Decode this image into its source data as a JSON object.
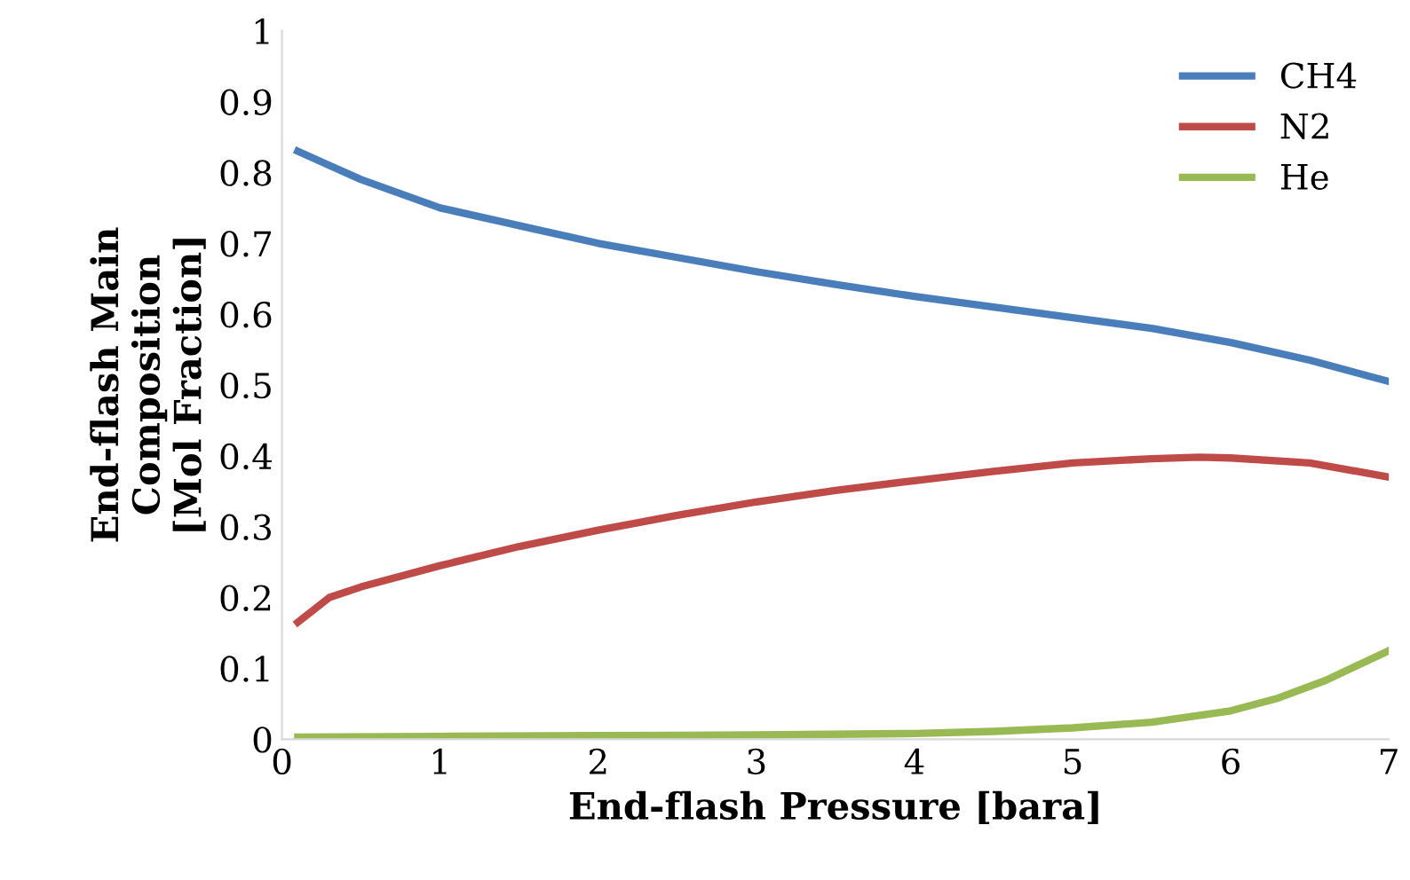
{
  "chart_data": {
    "type": "line",
    "xlabel": "End-flash Pressure [bara]",
    "ylabel": "End-flash Main\nComposition\n[Mol Fraction]",
    "xlim": [
      0,
      7
    ],
    "xticks": [
      0,
      1,
      2,
      3,
      4,
      5,
      6,
      7
    ],
    "ylim": [
      0,
      1
    ],
    "yticks": [
      0,
      0.1,
      0.2,
      0.3,
      0.4,
      0.5,
      0.6,
      0.7,
      0.8,
      0.9,
      1
    ],
    "grid": false,
    "legend": "top right",
    "marker": "none",
    "line_style": "solid",
    "series": [
      {
        "name": "CH4",
        "color": "#4a7ebb",
        "x": [
          0.1,
          0.3,
          0.5,
          1,
          1.5,
          2,
          2.5,
          3,
          3.5,
          4,
          4.5,
          5,
          5.5,
          6,
          6.5,
          7
        ],
        "values": [
          0.83,
          0.81,
          0.79,
          0.75,
          0.725,
          0.7,
          0.68,
          0.66,
          0.642,
          0.625,
          0.61,
          0.595,
          0.58,
          0.56,
          0.535,
          0.505
        ]
      },
      {
        "name": "N2",
        "color": "#be4b48",
        "x": [
          0.1,
          0.3,
          0.5,
          1,
          1.5,
          2,
          2.5,
          3,
          3.5,
          4,
          4.5,
          5,
          5.5,
          5.8,
          6,
          6.5,
          7
        ],
        "values": [
          0.165,
          0.2,
          0.215,
          0.245,
          0.272,
          0.295,
          0.316,
          0.335,
          0.351,
          0.365,
          0.378,
          0.39,
          0.396,
          0.398,
          0.397,
          0.39,
          0.37
        ]
      },
      {
        "name": "He",
        "color": "#98b954",
        "x": [
          0.1,
          1,
          2,
          3,
          4,
          4.5,
          5,
          5.5,
          6,
          6.3,
          6.6,
          7
        ],
        "values": [
          0.003,
          0.004,
          0.005,
          0.006,
          0.008,
          0.011,
          0.016,
          0.024,
          0.04,
          0.058,
          0.083,
          0.125
        ]
      }
    ]
  }
}
